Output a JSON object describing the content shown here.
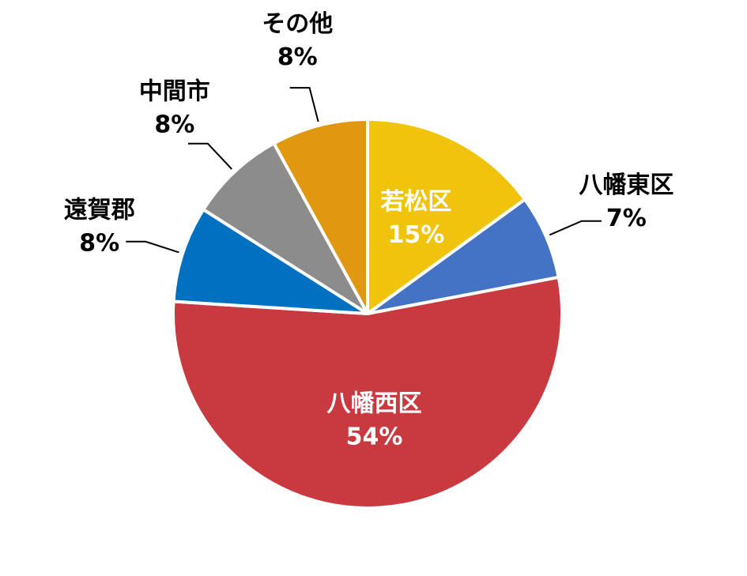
{
  "chart_data": {
    "type": "pie",
    "categories": [
      "若松区",
      "八幡東区",
      "八幡西区",
      "遠賀郡",
      "中間市",
      "その他"
    ],
    "values": [
      15,
      7,
      54,
      8,
      8,
      8
    ],
    "value_labels": [
      "15%",
      "7%",
      "54%",
      "8%",
      "8%",
      "8%"
    ],
    "colors": [
      "#f0c40c",
      "#4472c4",
      "#c93a40",
      "#0070c0",
      "#8c8c8c",
      "#e09810"
    ],
    "start_angle": 0,
    "direction": "clockwise"
  }
}
